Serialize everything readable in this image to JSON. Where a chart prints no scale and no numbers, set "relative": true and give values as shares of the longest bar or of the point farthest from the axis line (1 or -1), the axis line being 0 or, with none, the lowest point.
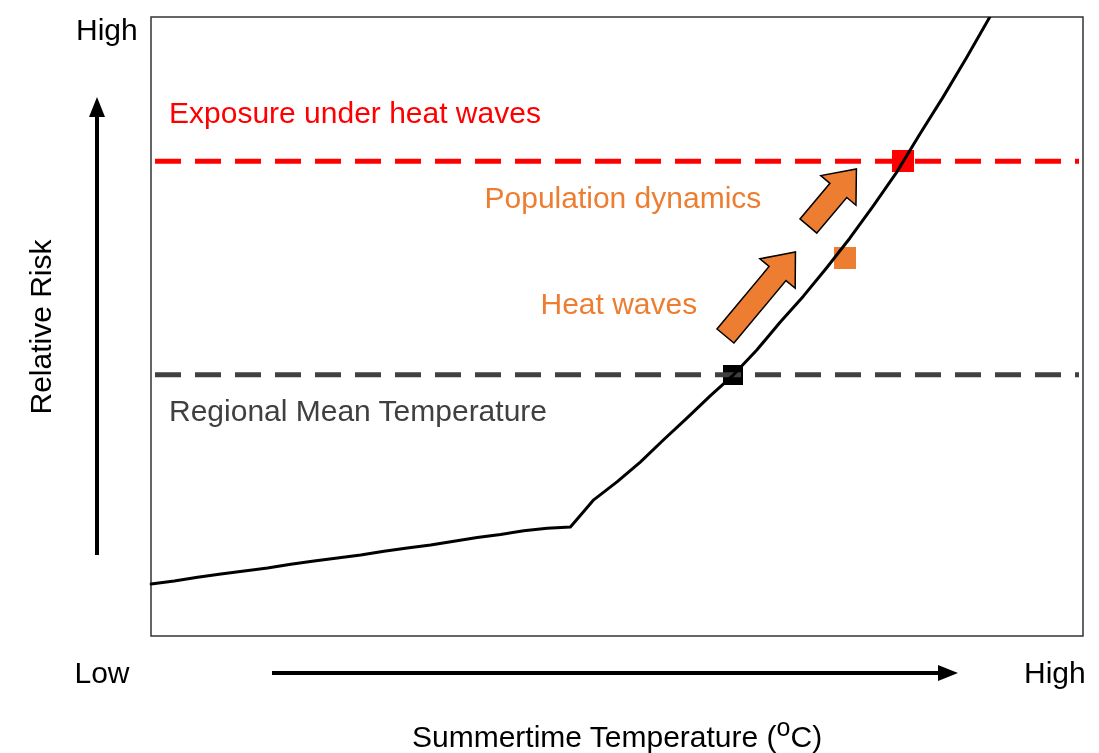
{
  "chart_data": {
    "type": "line",
    "relative": true,
    "xlabel": "Summertime Temperature ($^{o}$C)",
    "ylabel": "Relative Risk",
    "categories": [
      null,
      null,
      null,
      null,
      null,
      null,
      null,
      null,
      null,
      null,
      null,
      null,
      null,
      null,
      null,
      null,
      null,
      null,
      null,
      null,
      null,
      null,
      null,
      null,
      null,
      null,
      null,
      null,
      null,
      null,
      null,
      null,
      null,
      null,
      null,
      null,
      null,
      null,
      null,
      null,
      null
    ],
    "series": [
      {
        "color": "#000000",
        "values": [
          0.084,
          0.089,
          0.095,
          0.1,
          0.105,
          0.11,
          0.116,
          0.121,
          0.126,
          0.131,
          0.137,
          0.142,
          0.147,
          0.153,
          0.159,
          0.164,
          0.17,
          0.174,
          0.176,
          0.22,
          0.249,
          0.281,
          0.317,
          0.352,
          0.388,
          0.422,
          0.462,
          0.507,
          0.549,
          0.595,
          0.643,
          0.695,
          0.749,
          0.811,
          0.871,
          0.934,
          1.0,
          null,
          null,
          null,
          null
        ]
      }
    ],
    "ref_lines": [
      {
        "axis": "y",
        "value": 0.767,
        "label": "Exposure under heat waves",
        "color": "#ff0000",
        "line_style": "dashed"
      },
      {
        "axis": "y",
        "value": 0.422,
        "label": "Regional Mean Temperature",
        "color": "#404040",
        "line_style": "dashed"
      }
    ],
    "annotations": [
      "High",
      "Low",
      "High",
      "Heat waves",
      "Population dynamics"
    ]
  }
}
